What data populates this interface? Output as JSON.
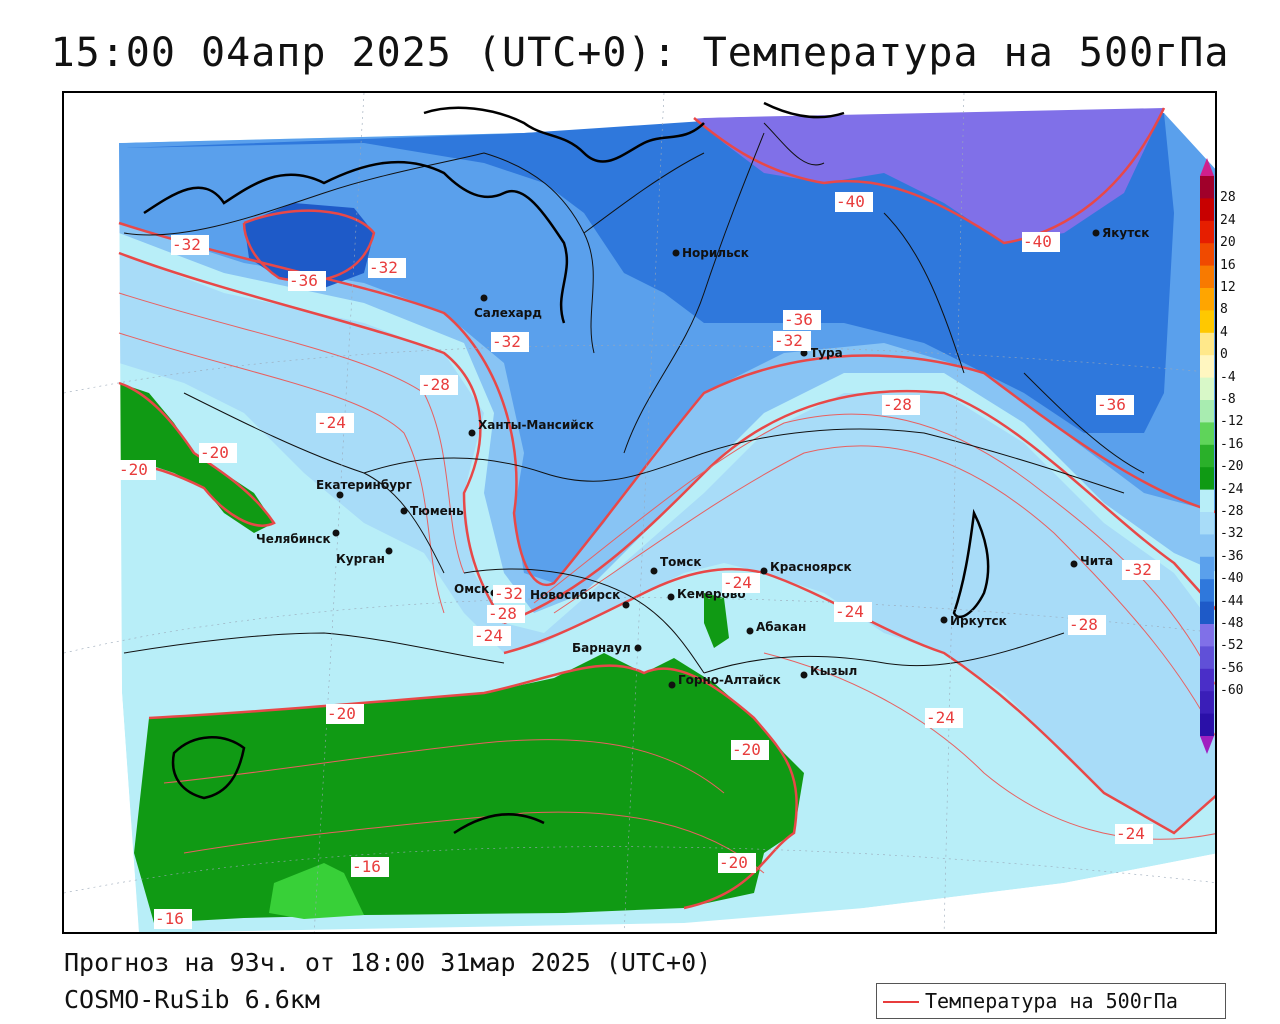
{
  "title": "15:00 04апр 2025 (UTC+0): Температура на 500гПа",
  "footer": {
    "forecast": "Прогноз на 93ч. от 18:00 31мар 2025 (UTC+0)",
    "model": "COSMO-RuSib 6.6км"
  },
  "legend": {
    "label": "Температура на 500гПа",
    "color": "#e83c3c"
  },
  "colorbar": {
    "labels": [
      "28",
      "24",
      "20",
      "16",
      "12",
      "8",
      "4",
      "0",
      "-4",
      "-8",
      "-12",
      "-16",
      "-20",
      "-24",
      "-28",
      "-32",
      "-36",
      "-40",
      "-44",
      "-48",
      "-52",
      "-56",
      "-60"
    ],
    "colors": [
      "#a0002a",
      "#c80000",
      "#e61e00",
      "#f04a00",
      "#f87a00",
      "#ffa500",
      "#ffc800",
      "#ffe88a",
      "#fff6c0",
      "#d8f8c8",
      "#a8ecb0",
      "#5fd45a",
      "#2ab02a",
      "#0f9a14",
      "#b8eef8",
      "#a8dcf8",
      "#88c4f4",
      "#5aa0ec",
      "#2f78dc",
      "#1e5ac8",
      "#8070e8",
      "#6050d8",
      "#4a2ec8",
      "#3a1eb8",
      "#2a10a8",
      "#a020c0"
    ]
  },
  "cities": [
    {
      "name": "Салехард"
    },
    {
      "name": "Норильск"
    },
    {
      "name": "Якутск"
    },
    {
      "name": "Тура"
    },
    {
      "name": "Ханты-Мансийск"
    },
    {
      "name": "Екатеринбург"
    },
    {
      "name": "Тюмень"
    },
    {
      "name": "Челябинск"
    },
    {
      "name": "Курган"
    },
    {
      "name": "Омск"
    },
    {
      "name": "Новосибирск"
    },
    {
      "name": "Томск"
    },
    {
      "name": "Кемерово"
    },
    {
      "name": "Красноярск"
    },
    {
      "name": "Абакан"
    },
    {
      "name": "Барнаул"
    },
    {
      "name": "Горно-Алтайск"
    },
    {
      "name": "Кызыл"
    },
    {
      "name": "Иркутск"
    },
    {
      "name": "Чита"
    }
  ],
  "isotherm_labels": [
    "-32",
    "-36",
    "-32",
    "-40",
    "-40",
    "-32",
    "-36",
    "-32",
    "-28",
    "-24",
    "-20",
    "-20",
    "-28",
    "-36",
    "-32",
    "-24",
    "-32",
    "-28",
    "-24",
    "-24",
    "-28",
    "-20",
    "-24",
    "-20",
    "-24",
    "-16",
    "-20",
    "-16",
    "-24"
  ]
}
